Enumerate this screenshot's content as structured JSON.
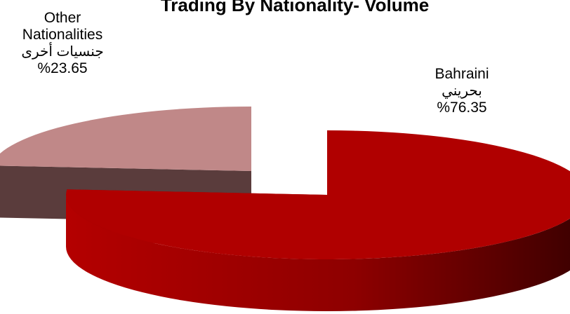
{
  "chart_data": {
    "type": "pie",
    "title": "Trading By Nationality- Volume",
    "slices": [
      {
        "label": "Bahraini",
        "label_ar": "بحريني",
        "value": 76.35,
        "value_text": "%76.35",
        "color": "#b00000",
        "side_color_light": "#9a0000",
        "side_color_dark": "#3a0000",
        "exploded": false
      },
      {
        "label_line1": "Other",
        "label_line2": "Nationalities",
        "label_ar": "جنسيات أخرى",
        "value": 23.65,
        "value_text": "%23.65",
        "color": "#c08888",
        "side_color_light": "#5a3c3c",
        "side_color_dark": "#4a3030",
        "exploded": true
      }
    ],
    "style": "3d-pie",
    "legend": "none"
  }
}
